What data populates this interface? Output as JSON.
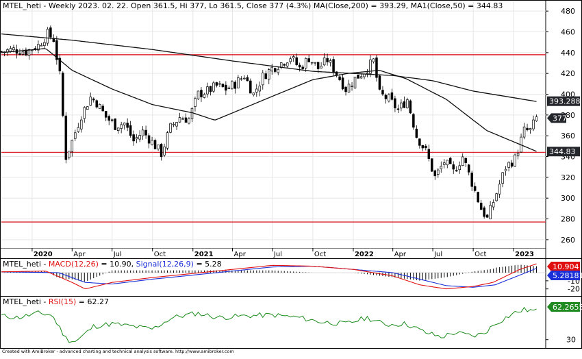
{
  "chart_data": [
    {
      "type": "candlestick",
      "panel": "price",
      "title": "MTEL_heti - Weekly 2023. 02. 22. Open 361.5, Hi 377, Lo 361.5, Close 377 (4.3%) MA(Close,200) = 393.29, MA1(Close,50) = 344.83",
      "title_parts": {
        "prefix": "MTEL_heti - Weekly 2023. 02. 22. Open 361.5, Hi 377, Lo 361.5, Close 377 (4.3%) ",
        "ma200": "MA(Close,200) = 393.29, ",
        "ma50": "MA1(Close,50) = 344.83"
      },
      "ylim": [
        252,
        490
      ],
      "y_ticks": [
        "480",
        "460",
        "440",
        "420",
        "400",
        "380",
        "360",
        "340",
        "320",
        "300",
        "280",
        "260"
      ],
      "y_tick_values": [
        480,
        460,
        440,
        420,
        400,
        380,
        360,
        340,
        320,
        300,
        280,
        260
      ],
      "x_ticks": [
        "2020",
        "Apr",
        "Jul",
        "Oct",
        "2021",
        "Apr",
        "Jul",
        "Oct",
        "2022",
        "Apr",
        "Jul",
        "Oct",
        "2023"
      ],
      "x_ticks_bold": [
        "2020",
        "2021",
        "2022",
        "2023"
      ],
      "x_tick_dates": [
        "2020-01-01",
        "2020-04-01",
        "2020-07-01",
        "2020-10-01",
        "2021-01-01",
        "2021-04-01",
        "2021-07-01",
        "2021-10-01",
        "2022-01-01",
        "2022-04-01",
        "2022-07-01",
        "2022-10-01",
        "2023-01-01"
      ],
      "x_range_dates": [
        "2019-10-23",
        "2023-03-15"
      ],
      "horizontal_lines": [
        438,
        344,
        277
      ],
      "horizontal_line_color": "#d9262f",
      "value_labels": [
        {
          "text": "393.288",
          "value": 393.288,
          "style": "dark"
        },
        {
          "text": "377",
          "value": 377,
          "style": "dark-arrow"
        },
        {
          "text": "344.83",
          "value": 344.83,
          "style": "dark"
        }
      ],
      "close_path": [
        [
          "2019-10-23",
          441
        ],
        [
          "2019-11-20",
          443
        ],
        [
          "2019-12-18",
          441
        ],
        [
          "2020-01-15",
          447
        ],
        [
          "2020-02-05",
          458
        ],
        [
          "2020-02-19",
          453
        ],
        [
          "2020-03-04",
          418
        ],
        [
          "2020-03-18",
          340
        ],
        [
          "2020-04-01",
          355
        ],
        [
          "2020-04-22",
          380
        ],
        [
          "2020-05-13",
          397
        ],
        [
          "2020-05-27",
          392
        ],
        [
          "2020-06-17",
          378
        ],
        [
          "2020-07-08",
          370
        ],
        [
          "2020-07-29",
          372
        ],
        [
          "2020-08-19",
          355
        ],
        [
          "2020-09-09",
          364
        ],
        [
          "2020-09-30",
          354
        ],
        [
          "2020-10-21",
          343
        ],
        [
          "2020-11-11",
          368
        ],
        [
          "2020-12-02",
          378
        ],
        [
          "2020-12-23",
          376
        ],
        [
          "2021-01-13",
          400
        ],
        [
          "2021-02-03",
          403
        ],
        [
          "2021-02-24",
          408
        ],
        [
          "2021-03-17",
          405
        ],
        [
          "2021-04-07",
          410
        ],
        [
          "2021-04-28",
          418
        ],
        [
          "2021-05-19",
          400
        ],
        [
          "2021-06-09",
          417
        ],
        [
          "2021-06-30",
          425
        ],
        [
          "2021-07-21",
          430
        ],
        [
          "2021-08-11",
          436
        ],
        [
          "2021-09-01",
          425
        ],
        [
          "2021-09-22",
          435
        ],
        [
          "2021-10-13",
          425
        ],
        [
          "2021-11-03",
          433
        ],
        [
          "2021-11-24",
          420
        ],
        [
          "2021-12-15",
          405
        ],
        [
          "2022-01-05",
          415
        ],
        [
          "2022-01-26",
          422
        ],
        [
          "2022-02-16",
          432
        ],
        [
          "2022-03-02",
          400
        ],
        [
          "2022-03-23",
          395
        ],
        [
          "2022-04-13",
          385
        ],
        [
          "2022-05-04",
          395
        ],
        [
          "2022-05-25",
          360
        ],
        [
          "2022-06-15",
          345
        ],
        [
          "2022-07-06",
          320
        ],
        [
          "2022-07-27",
          335
        ],
        [
          "2022-08-17",
          325
        ],
        [
          "2022-09-07",
          340
        ],
        [
          "2022-09-28",
          315
        ],
        [
          "2022-10-19",
          290
        ],
        [
          "2022-11-02",
          280
        ],
        [
          "2022-11-23",
          305
        ],
        [
          "2022-12-14",
          330
        ],
        [
          "2023-01-04",
          338
        ],
        [
          "2023-01-25",
          365
        ],
        [
          "2023-02-08",
          365
        ],
        [
          "2023-02-22",
          377
        ]
      ],
      "ma200": {
        "name": "MA(Close,200)",
        "color": "#111111",
        "points": [
          [
            "2019-10-23",
            458
          ],
          [
            "2020-04-01",
            452
          ],
          [
            "2020-10-01",
            443
          ],
          [
            "2021-04-01",
            432
          ],
          [
            "2021-10-01",
            422
          ],
          [
            "2022-04-01",
            418
          ],
          [
            "2022-07-01",
            413
          ],
          [
            "2022-10-01",
            403
          ],
          [
            "2023-02-22",
            393
          ]
        ]
      },
      "ma50": {
        "name": "MA1(Close,50)",
        "color": "#111111",
        "points": [
          [
            "2019-10-23",
            440
          ],
          [
            "2020-02-01",
            444
          ],
          [
            "2020-04-01",
            423
          ],
          [
            "2020-07-01",
            405
          ],
          [
            "2020-10-01",
            390
          ],
          [
            "2021-01-01",
            382
          ],
          [
            "2021-02-20",
            375
          ],
          [
            "2021-04-01",
            382
          ],
          [
            "2021-07-01",
            398
          ],
          [
            "2021-10-01",
            414
          ],
          [
            "2021-12-20",
            420
          ],
          [
            "2022-03-01",
            423
          ],
          [
            "2022-05-01",
            415
          ],
          [
            "2022-08-01",
            395
          ],
          [
            "2022-11-01",
            365
          ],
          [
            "2023-02-22",
            345
          ]
        ]
      }
    },
    {
      "type": "line+histogram",
      "panel": "macd",
      "title_prefix": "MTEL_heti - ",
      "macd_label": "MACD(12,26)",
      "macd_value_text": " = 10.90, ",
      "signal_label": "Signal(12,26,9)",
      "signal_value_text": " = 5.28",
      "ylim": [
        -27,
        16
      ],
      "y_ticks": [
        "-10",
        "-20"
      ],
      "y_tick_values": [
        -10,
        -20
      ],
      "value_labels": [
        {
          "text": "10.904",
          "value": 10.904,
          "color": "#e01010"
        },
        {
          "text": "5.28181",
          "value": 5.28181,
          "color": "#1a2fd8"
        }
      ],
      "macd": {
        "color": "#e01010",
        "points": [
          [
            "2019-10-23",
            1
          ],
          [
            "2020-02-01",
            2
          ],
          [
            "2020-04-01",
            -12
          ],
          [
            "2020-05-01",
            -20
          ],
          [
            "2020-07-01",
            -12
          ],
          [
            "2020-10-01",
            -6
          ],
          [
            "2021-01-01",
            -1
          ],
          [
            "2021-04-01",
            4
          ],
          [
            "2021-07-01",
            9
          ],
          [
            "2021-10-01",
            8
          ],
          [
            "2022-01-01",
            4
          ],
          [
            "2022-04-01",
            -4
          ],
          [
            "2022-06-01",
            -15
          ],
          [
            "2022-08-01",
            -20
          ],
          [
            "2022-10-01",
            -17
          ],
          [
            "2022-11-15",
            -12
          ],
          [
            "2023-01-15",
            4
          ],
          [
            "2023-02-22",
            10.9
          ]
        ]
      },
      "signal": {
        "color": "#1a2fd8",
        "points": [
          [
            "2019-10-23",
            1
          ],
          [
            "2020-03-01",
            0
          ],
          [
            "2020-05-01",
            -12
          ],
          [
            "2020-07-01",
            -14
          ],
          [
            "2020-10-01",
            -8
          ],
          [
            "2021-01-01",
            -3
          ],
          [
            "2021-04-01",
            2
          ],
          [
            "2021-07-01",
            7
          ],
          [
            "2021-10-01",
            8
          ],
          [
            "2022-01-01",
            4
          ],
          [
            "2022-04-01",
            0
          ],
          [
            "2022-06-01",
            -8
          ],
          [
            "2022-08-01",
            -16
          ],
          [
            "2022-10-01",
            -18
          ],
          [
            "2022-11-20",
            -15
          ],
          [
            "2023-01-15",
            -3
          ],
          [
            "2023-02-22",
            5.28
          ]
        ]
      }
    },
    {
      "type": "line",
      "panel": "rsi",
      "title_prefix": "MTEL_heti - ",
      "rsi_label": "RSI(15)",
      "rsi_value_text": " = 62.27",
      "ylim": [
        22,
        78
      ],
      "y_ticks": [
        "30"
      ],
      "y_tick_values": [
        30
      ],
      "value_labels": [
        {
          "text": "62.2655",
          "value": 62.2655,
          "color": "#1f8a1f"
        }
      ],
      "rsi": {
        "color": "#1a8a1a",
        "points": [
          [
            "2019-10-23",
            57
          ],
          [
            "2019-12-01",
            55
          ],
          [
            "2020-01-15",
            60
          ],
          [
            "2020-02-15",
            58
          ],
          [
            "2020-03-20",
            30
          ],
          [
            "2020-04-10",
            28
          ],
          [
            "2020-05-20",
            45
          ],
          [
            "2020-07-01",
            48
          ],
          [
            "2020-08-15",
            45
          ],
          [
            "2020-10-01",
            42
          ],
          [
            "2020-11-15",
            55
          ],
          [
            "2021-01-10",
            60
          ],
          [
            "2021-03-01",
            55
          ],
          [
            "2021-05-01",
            57
          ],
          [
            "2021-07-01",
            58
          ],
          [
            "2021-09-01",
            55
          ],
          [
            "2021-10-20",
            50
          ],
          [
            "2021-12-15",
            48
          ],
          [
            "2022-02-01",
            55
          ],
          [
            "2022-03-15",
            47
          ],
          [
            "2022-05-01",
            48
          ],
          [
            "2022-06-15",
            38
          ],
          [
            "2022-07-20",
            33
          ],
          [
            "2022-08-20",
            38
          ],
          [
            "2022-10-01",
            34
          ],
          [
            "2022-10-25",
            37
          ],
          [
            "2022-11-20",
            48
          ],
          [
            "2023-01-01",
            60
          ],
          [
            "2023-01-25",
            64
          ],
          [
            "2023-02-22",
            62.27
          ]
        ]
      }
    }
  ],
  "footer": "Created with AmiBroker - advanced charting and technical analysis software. http://www.amibroker.com"
}
